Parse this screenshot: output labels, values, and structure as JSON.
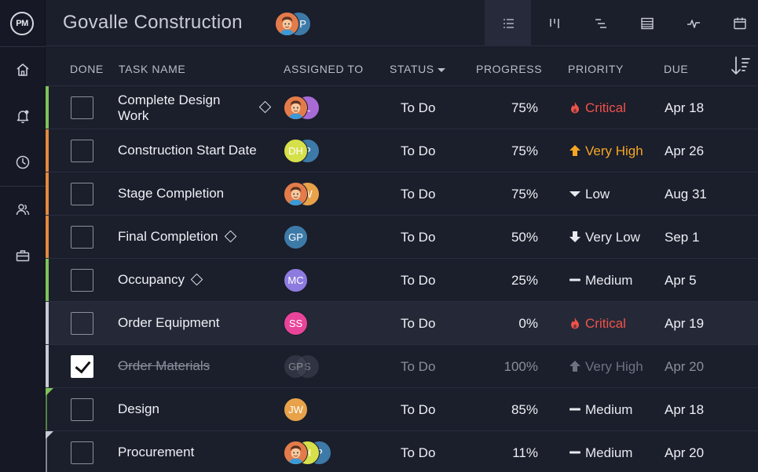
{
  "header": {
    "logo": "PM",
    "project_title": "Govalle Construction",
    "team_avatars": [
      {
        "initials": "",
        "color": "#e37b4a",
        "face": true
      },
      {
        "initials": "GP",
        "color": "#3d7aa8"
      }
    ]
  },
  "rail": {
    "items": [
      "home-icon",
      "bell-icon",
      "clock-icon",
      "people-icon",
      "briefcase-icon"
    ]
  },
  "views": [
    {
      "name": "list-view-icon",
      "active": true
    },
    {
      "name": "board-view-icon",
      "active": false
    },
    {
      "name": "gantt-view-icon",
      "active": false
    },
    {
      "name": "sheet-view-icon",
      "active": false
    },
    {
      "name": "dashboard-view-icon",
      "active": false
    },
    {
      "name": "calendar-view-icon",
      "active": false
    }
  ],
  "columns": {
    "done": "DONE",
    "task_name": "TASK NAME",
    "assigned_to": "ASSIGNED TO",
    "status": "STATUS",
    "progress": "PROGRESS",
    "priority": "PRIORITY",
    "due": "DUE"
  },
  "priority_colors": {
    "Critical": "#f0524a",
    "Very High": "#f5a623",
    "Low": "#e8eaf0",
    "Very Low": "#e8eaf0",
    "Medium": "#e8eaf0"
  },
  "rows": [
    {
      "name": "Complete Design Work",
      "milestone": true,
      "two_line": true,
      "done": false,
      "stripe": "#7ec45a",
      "assignees": [
        {
          "initials": "",
          "color": "#e37b4a",
          "face": true
        },
        {
          "initials": "L",
          "color": "#a86bd6"
        }
      ],
      "status": "To Do",
      "progress": "75%",
      "priority": "Critical",
      "priority_icon": "flame",
      "due": "Apr 18"
    },
    {
      "name": "Construction Start Date",
      "milestone": false,
      "done": false,
      "stripe": "#e38b3c",
      "assignees": [
        {
          "initials": "DH",
          "color": "#d6e04a"
        },
        {
          "initials": "P",
          "color": "#3d7aa8"
        }
      ],
      "status": "To Do",
      "progress": "75%",
      "priority": "Very High",
      "priority_icon": "arrow-up",
      "due": "Apr 26"
    },
    {
      "name": "Stage Completion",
      "milestone": false,
      "done": false,
      "stripe": "#e38b3c",
      "assignees": [
        {
          "initials": "",
          "color": "#e37b4a",
          "face": true
        },
        {
          "initials": "W",
          "color": "#e8a24a"
        }
      ],
      "status": "To Do",
      "progress": "75%",
      "priority": "Low",
      "priority_icon": "triangle-down",
      "due": "Aug 31"
    },
    {
      "name": "Final Completion",
      "milestone": true,
      "done": false,
      "stripe": "#e38b3c",
      "assignees": [
        {
          "initials": "GP",
          "color": "#3d7aa8"
        }
      ],
      "status": "To Do",
      "progress": "50%",
      "priority": "Very Low",
      "priority_icon": "arrow-down",
      "due": "Sep 1"
    },
    {
      "name": "Occupancy",
      "milestone": true,
      "done": false,
      "stripe": "#7ec45a",
      "assignees": [
        {
          "initials": "MC",
          "color": "#8d7be0"
        }
      ],
      "status": "To Do",
      "progress": "25%",
      "priority": "Medium",
      "priority_icon": "dash",
      "due": "Apr 5"
    },
    {
      "name": "Order Equipment",
      "milestone": false,
      "done": false,
      "stripe": "#c7cbd6",
      "selected": true,
      "assignees": [
        {
          "initials": "SS",
          "color": "#e8449a"
        }
      ],
      "status": "To Do",
      "progress": "0%",
      "priority": "Critical",
      "priority_icon": "flame",
      "due": "Apr 19"
    },
    {
      "name": "Order Materials",
      "milestone": false,
      "done": true,
      "stripe": "#c7cbd6",
      "assignees": [
        {
          "initials": "GP",
          "color": "#4a4e5c"
        },
        {
          "initials": "S",
          "color": "#4a4e5c"
        }
      ],
      "status": "To Do",
      "progress": "100%",
      "priority": "Very High",
      "priority_icon": "arrow-up",
      "due": "Apr 20"
    },
    {
      "name": "Design",
      "milestone": false,
      "done": false,
      "stripe": "#7ec45a",
      "stripe_tri": true,
      "assignees": [
        {
          "initials": "JW",
          "color": "#e8a24a"
        }
      ],
      "status": "To Do",
      "progress": "85%",
      "priority": "Medium",
      "priority_icon": "dash",
      "due": "Apr 18"
    },
    {
      "name": "Procurement",
      "milestone": false,
      "done": false,
      "stripe": "#c7cbd6",
      "stripe_tri": true,
      "assignees": [
        {
          "initials": "",
          "color": "#e37b4a",
          "face": true
        },
        {
          "initials": "H",
          "color": "#d6e04a"
        },
        {
          "initials": "P",
          "color": "#3d7aa8"
        }
      ],
      "status": "To Do",
      "progress": "11%",
      "priority": "Medium",
      "priority_icon": "dash",
      "due": "Apr 20"
    }
  ]
}
